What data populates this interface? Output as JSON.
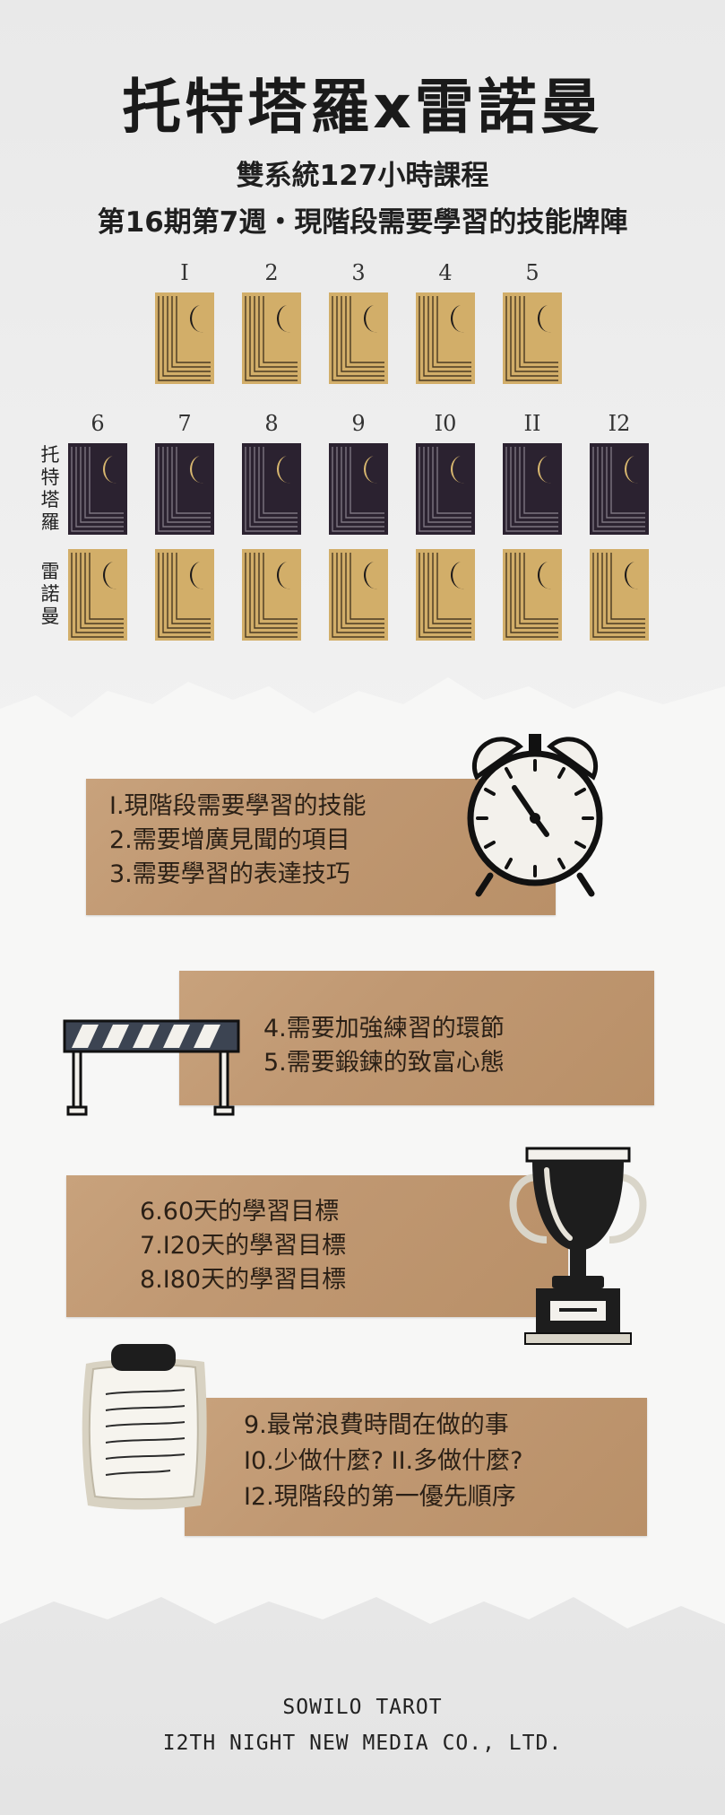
{
  "header": {
    "title": "托特塔羅x雷諾曼",
    "subtitle_1": "雙系統127小時課程",
    "subtitle_2": "第16期第7週・現階段需要學習的技能牌陣"
  },
  "spread": {
    "top_numbers": [
      "I",
      "2",
      "3",
      "4",
      "5"
    ],
    "bottom_numbers": [
      "6",
      "7",
      "8",
      "9",
      "I0",
      "II",
      "I2"
    ],
    "row_label_tarot": "托特塔羅",
    "row_label_lenormand": "雷諾曼"
  },
  "sections": {
    "s1": [
      "I.現階段需要學習的技能",
      "2.需要增廣見聞的項目",
      "3.需要學習的表達技巧"
    ],
    "s2": [
      "4.需要加強練習的環節",
      "5.需要鍛鍊的致富心態"
    ],
    "s3": [
      "6.60天的學習目標",
      "7.I20天的學習目標",
      "8.I80天的學習目標"
    ],
    "s4": [
      "9.最常浪費時間在做的事",
      "I0.少做什麼? II.多做什麼?",
      "I2.現階段的第一優先順序"
    ]
  },
  "footer": {
    "line1": "SOWILO TAROT",
    "line2": "I2TH NIGHT NEW MEDIA CO., LTD."
  },
  "colors": {
    "card_gold": "#d2ae69",
    "card_dark": "#2b2230",
    "kraft": "#c09872",
    "text_dark": "#1a1a1a"
  }
}
